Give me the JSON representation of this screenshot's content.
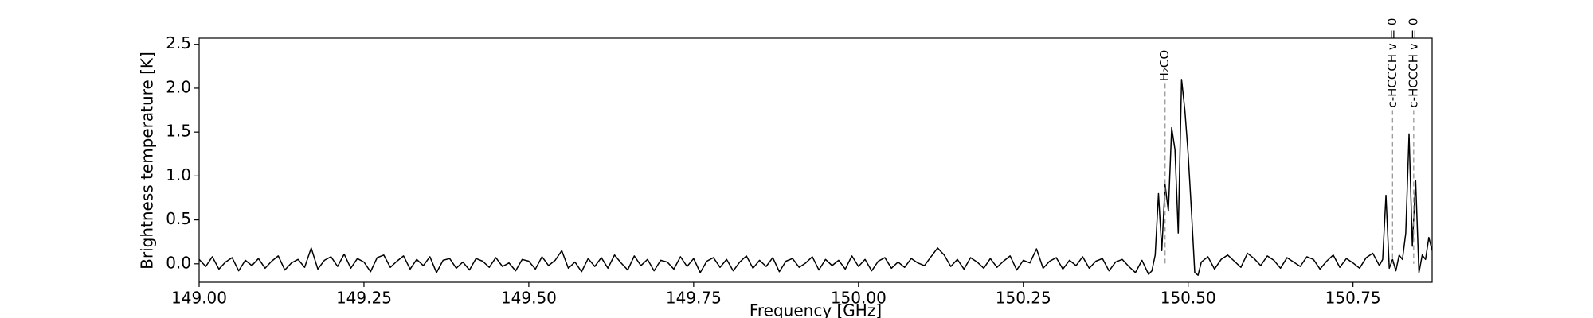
{
  "chart_data": {
    "type": "line",
    "xlabel": "Frequency [GHz]",
    "ylabel": "Brightness temperature [K]",
    "color": "#000000",
    "x": [
      149,
      149.01,
      149.02,
      149.03,
      149.04,
      149.05,
      149.06,
      149.07,
      149.08,
      149.09,
      149.1,
      149.11,
      149.12,
      149.13,
      149.14,
      149.15,
      149.16,
      149.17,
      149.18,
      149.19,
      149.2,
      149.21,
      149.22,
      149.23,
      149.24,
      149.25,
      149.26,
      149.27,
      149.28,
      149.29,
      149.3,
      149.31,
      149.32,
      149.33,
      149.34,
      149.35,
      149.36,
      149.37,
      149.38,
      149.39,
      149.4,
      149.41,
      149.42,
      149.43,
      149.44,
      149.45,
      149.46,
      149.47,
      149.48,
      149.49,
      149.5,
      149.51,
      149.52,
      149.53,
      149.54,
      149.55,
      149.56,
      149.57,
      149.58,
      149.59,
      149.6,
      149.61,
      149.62,
      149.63,
      149.64,
      149.65,
      149.66,
      149.67,
      149.68,
      149.69,
      149.7,
      149.71,
      149.72,
      149.73,
      149.74,
      149.75,
      149.76,
      149.77,
      149.78,
      149.79,
      149.8,
      149.81,
      149.82,
      149.83,
      149.84,
      149.85,
      149.86,
      149.87,
      149.88,
      149.89,
      149.9,
      149.91,
      149.92,
      149.93,
      149.94,
      149.95,
      149.96,
      149.97,
      149.98,
      149.99,
      150,
      150.01,
      150.02,
      150.03,
      150.04,
      150.05,
      150.06,
      150.07,
      150.08,
      150.09,
      150.1,
      150.11,
      150.12,
      150.13,
      150.14,
      150.15,
      150.16,
      150.17,
      150.18,
      150.19,
      150.2,
      150.21,
      150.22,
      150.23,
      150.24,
      150.25,
      150.26,
      150.27,
      150.28,
      150.29,
      150.3,
      150.31,
      150.32,
      150.33,
      150.34,
      150.35,
      150.36,
      150.37,
      150.38,
      150.39,
      150.4,
      150.41,
      150.42,
      150.43,
      150.44,
      150.445,
      150.45,
      150.455,
      150.46,
      150.465,
      150.47,
      150.475,
      150.48,
      150.485,
      150.49,
      150.495,
      150.5,
      150.505,
      150.51,
      150.515,
      150.52,
      150.53,
      150.54,
      150.55,
      150.56,
      150.57,
      150.58,
      150.59,
      150.6,
      150.61,
      150.62,
      150.63,
      150.64,
      150.65,
      150.66,
      150.67,
      150.68,
      150.69,
      150.7,
      150.71,
      150.72,
      150.73,
      150.74,
      150.75,
      150.76,
      150.77,
      150.78,
      150.79,
      150.795,
      150.8,
      150.805,
      150.81,
      150.815,
      150.82,
      150.825,
      150.83,
      150.835,
      150.84,
      150.845,
      150.85,
      150.855,
      150.86,
      150.865,
      150.87
    ],
    "values": [
      0.05,
      -0.03,
      0.08,
      -0.06,
      0.02,
      0.07,
      -0.08,
      0.04,
      -0.02,
      0.06,
      -0.05,
      0.03,
      0.09,
      -0.07,
      0.01,
      0.05,
      -0.04,
      0.18,
      -0.06,
      0.04,
      0.08,
      -0.03,
      0.11,
      -0.05,
      0.06,
      0.02,
      -0.09,
      0.07,
      0.1,
      -0.04,
      0.03,
      0.09,
      -0.06,
      0.05,
      -0.02,
      0.08,
      -0.1,
      0.04,
      0.06,
      -0.05,
      0.02,
      -0.07,
      0.06,
      0.03,
      -0.04,
      0.07,
      -0.03,
      0.01,
      -0.08,
      0.05,
      0.03,
      -0.06,
      0.08,
      -0.02,
      0.04,
      0.15,
      -0.05,
      0.02,
      -0.09,
      0.06,
      -0.03,
      0.07,
      -0.05,
      0.1,
      0.01,
      -0.07,
      0.09,
      -0.02,
      0.05,
      -0.08,
      0.04,
      0.02,
      -0.06,
      0.08,
      -0.03,
      0.06,
      -0.1,
      0.03,
      0.07,
      -0.04,
      0.05,
      -0.08,
      0.02,
      0.09,
      -0.05,
      0.04,
      -0.03,
      0.07,
      -0.09,
      0.03,
      0.06,
      -0.04,
      0.01,
      0.08,
      -0.07,
      0.05,
      -0.02,
      0.04,
      -0.06,
      0.09,
      -0.03,
      0.05,
      -0.08,
      0.03,
      0.07,
      -0.05,
      0.02,
      -0.04,
      0.06,
      0.01,
      -0.02,
      0.08,
      0.18,
      0.1,
      -0.03,
      0.05,
      -0.06,
      0.07,
      0.02,
      -0.05,
      0.06,
      -0.04,
      0.03,
      0.09,
      -0.07,
      0.04,
      0.01,
      0.17,
      -0.05,
      0.03,
      0.07,
      -0.06,
      0.04,
      -0.02,
      0.08,
      -0.05,
      0.03,
      0.06,
      -0.08,
      0.02,
      0.05,
      -0.03,
      -0.1,
      0.04,
      -0.12,
      -0.08,
      0.1,
      0.8,
      0.15,
      0.9,
      0.6,
      1.55,
      1.3,
      0.35,
      2.1,
      1.75,
      1.25,
      0.6,
      -0.1,
      -0.13,
      0.02,
      0.08,
      -0.06,
      0.05,
      0.1,
      0.03,
      -0.04,
      0.12,
      0.06,
      -0.02,
      0.09,
      0.04,
      -0.05,
      0.07,
      0.02,
      -0.03,
      0.08,
      0.05,
      -0.06,
      0.03,
      0.1,
      -0.04,
      0.06,
      0.01,
      -0.05,
      0.07,
      0.12,
      -0.02,
      0.05,
      0.78,
      -0.05,
      0.05,
      -0.08,
      0.1,
      0.05,
      0.35,
      1.48,
      0.2,
      0.95,
      -0.1,
      0.1,
      0.05,
      0.3,
      0.15
    ],
    "xlim": [
      149,
      150.87
    ],
    "ylim": [
      -0.21,
      2.57
    ],
    "xticks": [
      {
        "value": 149,
        "label": "149.00"
      },
      {
        "value": 149.25,
        "label": "149.25"
      },
      {
        "value": 149.5,
        "label": "149.50"
      },
      {
        "value": 149.75,
        "label": "149.75"
      },
      {
        "value": 150,
        "label": "150.00"
      },
      {
        "value": 150.25,
        "label": "150.25"
      },
      {
        "value": 150.5,
        "label": "150.50"
      },
      {
        "value": 150.75,
        "label": "150.75"
      }
    ],
    "yticks": [
      {
        "value": 0,
        "label": "0.0"
      },
      {
        "value": 0.5,
        "label": "0.5"
      },
      {
        "value": 1,
        "label": "1.0"
      },
      {
        "value": 1.5,
        "label": "1.5"
      },
      {
        "value": 2,
        "label": "2.0"
      },
      {
        "value": 2.5,
        "label": "2.5"
      }
    ],
    "annotations": [
      {
        "text": "H₂CO",
        "x": 150.465,
        "y": 2.05
      },
      {
        "text": "c-HCCCH v = 0",
        "x": 150.81,
        "y": 1.75
      },
      {
        "text": "c-HCCCH v = 0",
        "x": 150.842,
        "y": 1.75
      }
    ]
  }
}
